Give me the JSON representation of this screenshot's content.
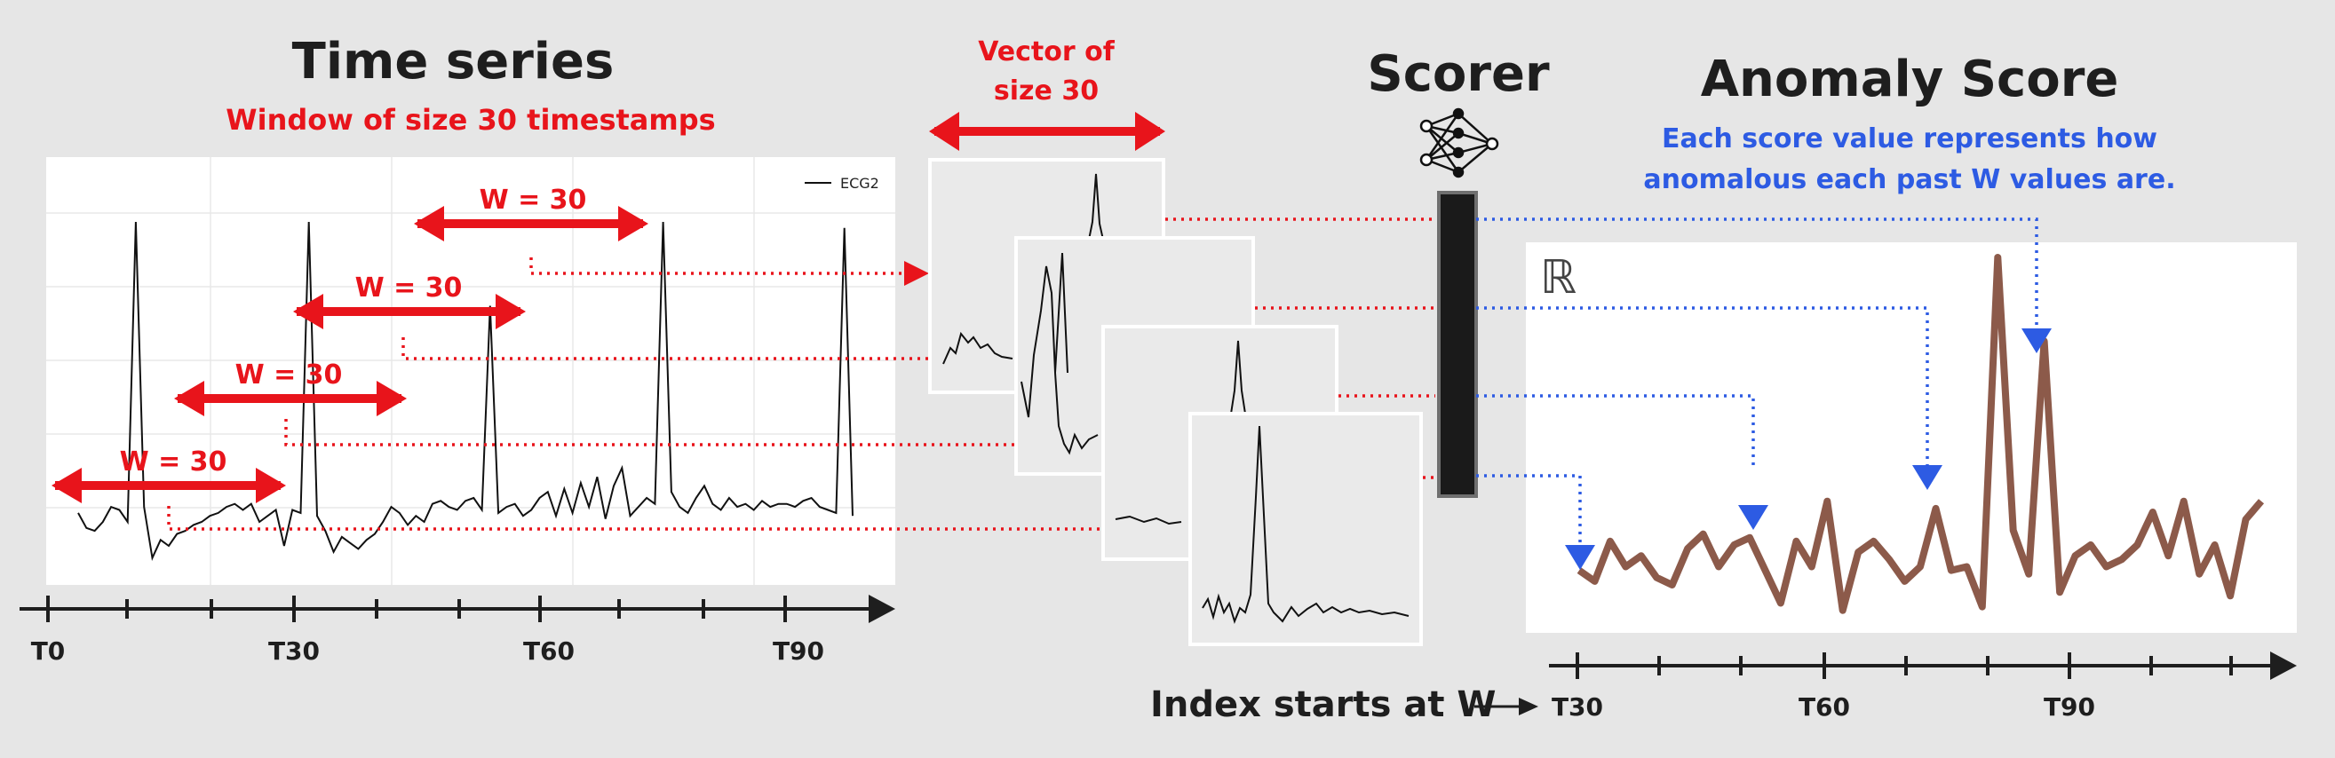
{
  "titles": {
    "time_series": "Time series",
    "window_subtitle": "Window of size 30 timestamps",
    "vector_line1": "Vector of",
    "vector_line2": "size 30",
    "scorer": "Scorer",
    "anomaly_score": "Anomaly Score",
    "anomaly_desc_line1": "Each score value represents how",
    "anomaly_desc_line2": "anomalous each past W values are."
  },
  "legend": {
    "series_name": "ECG2"
  },
  "window_labels": [
    "W = 30",
    "W = 30",
    "W = 30",
    "W = 30"
  ],
  "reals_symbol": "ℝ",
  "left_axis_ticks": [
    "T0",
    "T30",
    "T60",
    "T90"
  ],
  "right_axis_ticks": [
    "T30",
    "T60",
    "T90"
  ],
  "index_note": "Index starts at W",
  "colors": {
    "background": "#e6e6e6",
    "accent_red": "#e8141b",
    "accent_blue": "#2d5be3",
    "score_line": "#8c5a4a",
    "scorer_bar": "#1a1a1a",
    "text_dark": "#1e1e1e"
  },
  "chart_data": {
    "type": "line",
    "series": [
      {
        "name": "ECG2",
        "values": [
          0.03,
          -0.02,
          -0.03,
          0.0,
          0.05,
          0.04,
          0.0,
          1.0,
          0.05,
          -0.12,
          -0.06,
          -0.08,
          -0.04,
          -0.03,
          -0.01,
          0.0,
          0.02,
          0.03,
          0.05,
          0.06,
          0.04,
          0.06,
          0.0,
          0.02,
          0.04,
          -0.08,
          0.04,
          0.03,
          1.0,
          0.02,
          -0.03,
          -0.1,
          -0.05,
          -0.07,
          -0.09,
          -0.06,
          -0.04,
          0.0,
          0.05,
          0.03,
          -0.01,
          0.02,
          0.0,
          0.06,
          0.07,
          0.05,
          0.04,
          0.07,
          0.08,
          0.04,
          0.72,
          0.03,
          0.05,
          0.06,
          0.02,
          0.04,
          0.08,
          0.1,
          0.02,
          0.11,
          0.03,
          0.13,
          0.05,
          0.15,
          0.01,
          0.12,
          0.18,
          0.02,
          0.05,
          0.08,
          0.06,
          1.0,
          0.1,
          0.05,
          0.03,
          0.08,
          0.12,
          0.06,
          0.04,
          0.08,
          0.05,
          0.06,
          0.04,
          0.07,
          0.05,
          0.06,
          0.06,
          0.05,
          0.07,
          0.08,
          0.05,
          0.04,
          0.03,
          0.98,
          0.02
        ]
      }
    ]
  },
  "score_chart": {
    "type": "line",
    "values": [
      0.14,
      0.11,
      0.22,
      0.15,
      0.18,
      0.12,
      0.1,
      0.2,
      0.24,
      0.15,
      0.21,
      0.23,
      0.14,
      0.05,
      0.22,
      0.15,
      0.33,
      0.03,
      0.19,
      0.22,
      0.17,
      0.11,
      0.15,
      0.31,
      0.14,
      0.15,
      0.04,
      1.0,
      0.25,
      0.13,
      0.77,
      0.08,
      0.18,
      0.21,
      0.15,
      0.17,
      0.21,
      0.3,
      0.18,
      0.33,
      0.13,
      0.21,
      0.07,
      0.28,
      0.33
    ]
  }
}
